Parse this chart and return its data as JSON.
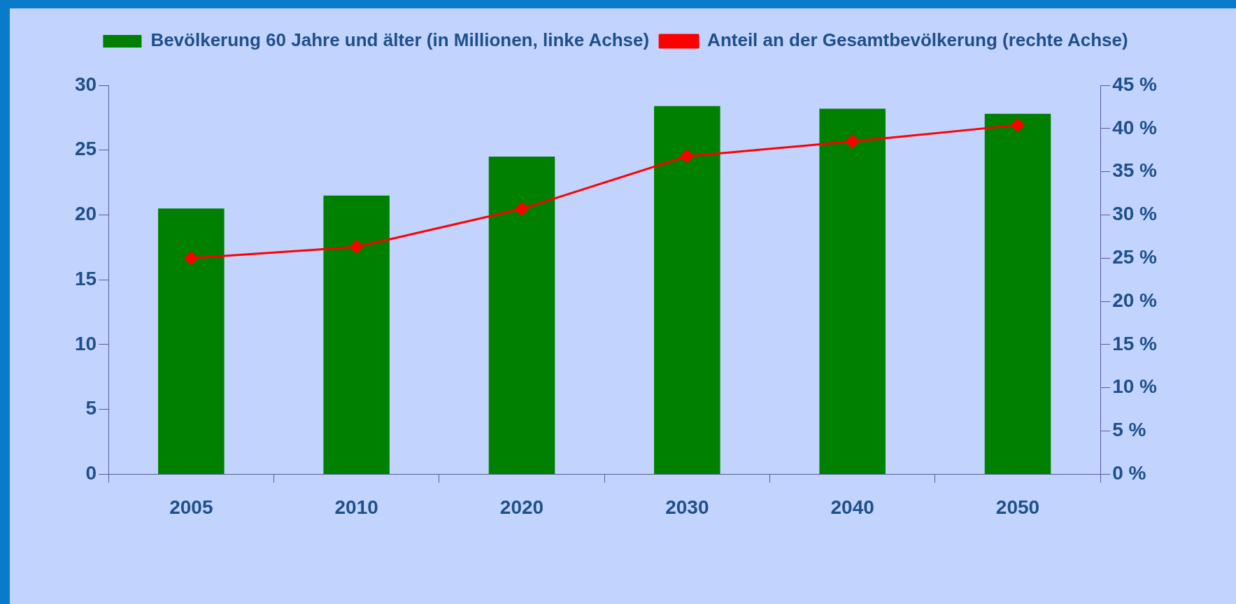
{
  "chart_data": {
    "type": "bar",
    "categories": [
      "2005",
      "2010",
      "2020",
      "2030",
      "2040",
      "2050"
    ],
    "series": [
      {
        "name": "Bevölkerung 60 Jahre und älter (in Millionen, linke Achse)",
        "color": "#008000",
        "values": [
          20.5,
          21.5,
          24.5,
          28.4,
          28.2,
          27.8
        ]
      },
      {
        "name": "Anteil an der Gesamtbevölkerung (rechte Achse)",
        "type": "line",
        "axis": "y2",
        "color": "#ff0000",
        "values": [
          25.0,
          26.3,
          30.7,
          36.8,
          38.5,
          40.4
        ]
      }
    ],
    "ylim": [
      0,
      30
    ],
    "yticks": [
      0,
      5,
      10,
      15,
      20,
      25,
      30
    ],
    "y2lim": [
      0,
      45
    ],
    "y2ticks": [
      {
        "value": 0,
        "label": "0 %"
      },
      {
        "value": 5,
        "label": "5 %"
      },
      {
        "value": 10,
        "label": "10 %"
      },
      {
        "value": 15,
        "label": "15 %"
      },
      {
        "value": 20,
        "label": "20 %"
      },
      {
        "value": 25,
        "label": "25 %"
      },
      {
        "value": 30,
        "label": "30 %"
      },
      {
        "value": 35,
        "label": "35 %"
      },
      {
        "value": 40,
        "label": "40 %"
      },
      {
        "value": 45,
        "label": "45 %"
      }
    ],
    "legend": "top",
    "marker": "diamond",
    "line_style": "solid"
  }
}
